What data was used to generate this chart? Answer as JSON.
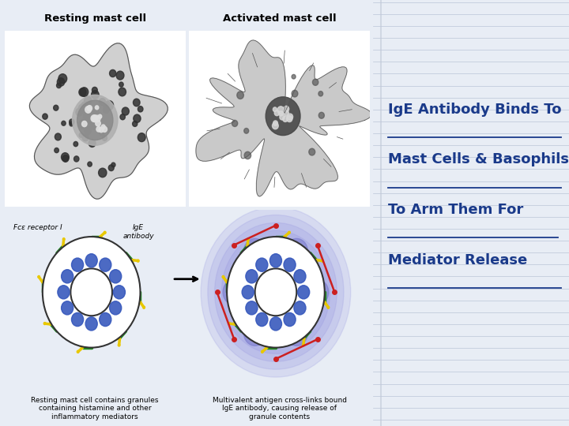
{
  "title_lines": [
    "IgE Antibody Binds To",
    "Mast Cells & Basophils",
    "To Arm Them For",
    "Mediator Release"
  ],
  "title_color": "#1a3a8a",
  "background_color": "#e8edf5",
  "panel_bg": "#ffffff",
  "top_left_label": "Resting mast cell",
  "top_right_label": "Activated mast cell",
  "top_label_bg": "#add8e6",
  "bottom_left_caption": "Resting mast cell contains granules\ncontaining histamine and other\ninflammatory mediators",
  "bottom_right_caption": "Multivalent antigen cross-links bound\nIgE antibody, causing release of\ngranule contents",
  "fce_label": "Fcε receptor I",
  "ige_label": "IgE\nantibody",
  "figsize": [
    7.2,
    5.4
  ],
  "dpi": 100
}
